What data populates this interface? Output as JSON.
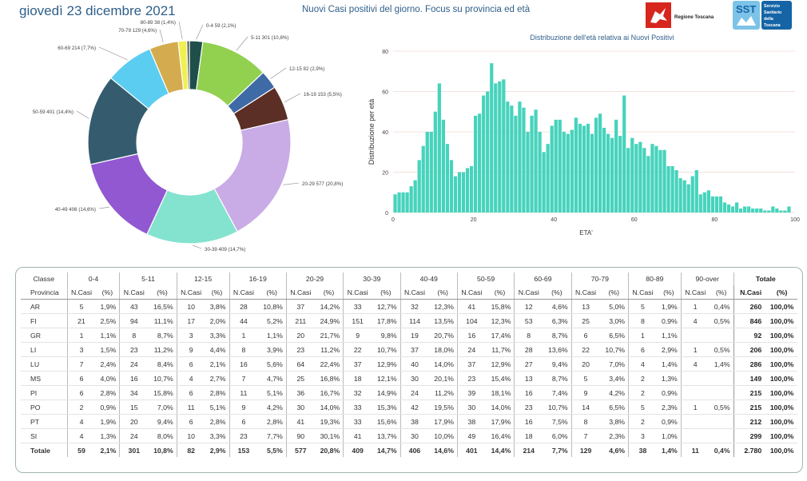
{
  "header": {
    "date": "giovedì 23 dicembre 2021",
    "title": "Nuovi Casi positivi del giorno. Focus su provincia ed età",
    "logo_regione": "Regione Toscana",
    "logo_sst": "SST",
    "logo_sst_text": [
      "Servizio",
      "Sanitario",
      "della",
      "Toscana"
    ]
  },
  "chart_data": [
    {
      "type": "pie",
      "donut": true,
      "slices": [
        {
          "label": "0-4 59 (2,1%)",
          "value": 59,
          "color": "#1f4f4a"
        },
        {
          "label": "5-11 301 (10,8%)",
          "value": 301,
          "color": "#92d050"
        },
        {
          "label": "12-15 82 (2,9%)",
          "value": 82,
          "color": "#3e6aa6"
        },
        {
          "label": "16-19 153 (5,5%)",
          "value": 153,
          "color": "#5b2e26"
        },
        {
          "label": "20-29 577 (20,8%)",
          "value": 577,
          "color": "#c9abe6"
        },
        {
          "label": "30-39 409 (14,7%)",
          "value": 409,
          "color": "#84e3cf"
        },
        {
          "label": "40-49 406 (14,6%)",
          "value": 406,
          "color": "#9158d1"
        },
        {
          "label": "50-59 401 (14,4%)",
          "value": 401,
          "color": "#355c6e"
        },
        {
          "label": "60-69 214 (7,7%)",
          "value": 214,
          "color": "#5bcdf1"
        },
        {
          "label": "70-79 129 (4,6%)",
          "value": 129,
          "color": "#d4ac4f"
        },
        {
          "label": "80-89 38 (1,4%)",
          "value": 38,
          "color": "#f0f050"
        },
        {
          "label": "",
          "value": 11,
          "color": "#4a4a4a"
        }
      ]
    },
    {
      "type": "bar",
      "title": "Distribuzione dell'età relativa ai Nuovi Positivi",
      "xlabel": "ETA'",
      "ylabel": "Distribuzione per età",
      "xlim": [
        0,
        100
      ],
      "ylim": [
        0,
        80
      ],
      "xticks": [
        0,
        20,
        40,
        60,
        80,
        100
      ],
      "yticks": [
        0,
        20,
        40,
        60,
        80
      ],
      "color": "#46d3bc",
      "x": [
        0,
        1,
        2,
        3,
        4,
        5,
        6,
        7,
        8,
        9,
        10,
        11,
        12,
        13,
        14,
        15,
        16,
        17,
        18,
        19,
        20,
        21,
        22,
        23,
        24,
        25,
        26,
        27,
        28,
        29,
        30,
        31,
        32,
        33,
        34,
        35,
        36,
        37,
        38,
        39,
        40,
        41,
        42,
        43,
        44,
        45,
        46,
        47,
        48,
        49,
        50,
        51,
        52,
        53,
        54,
        55,
        56,
        57,
        58,
        59,
        60,
        61,
        62,
        63,
        64,
        65,
        66,
        67,
        68,
        69,
        70,
        71,
        72,
        73,
        74,
        75,
        76,
        77,
        78,
        79,
        80,
        81,
        82,
        83,
        84,
        85,
        86,
        87,
        88,
        89,
        90,
        91,
        92,
        93,
        94,
        95,
        96,
        97,
        98
      ],
      "values": [
        9,
        10,
        10,
        10,
        13,
        16,
        26,
        33,
        40,
        40,
        50,
        64,
        46,
        34,
        26,
        18,
        20,
        20,
        22,
        23,
        48,
        49,
        58,
        60,
        74,
        64,
        65,
        66,
        55,
        53,
        48,
        55,
        52,
        40,
        48,
        51,
        40,
        30,
        34,
        43,
        46,
        46,
        40,
        39,
        41,
        47,
        44,
        43,
        44,
        39,
        47,
        49,
        42,
        39,
        37,
        46,
        38,
        58,
        32,
        37,
        34,
        35,
        32,
        28,
        34,
        33,
        31,
        31,
        23,
        23,
        21,
        17,
        16,
        14,
        18,
        21,
        9,
        10,
        11,
        8,
        8,
        8,
        5,
        4,
        3,
        5,
        2,
        3,
        3,
        2,
        2,
        2,
        1,
        1,
        3,
        2,
        1,
        1,
        3
      ]
    },
    {
      "type": "table",
      "age_groups": [
        "0-4",
        "5-11",
        "12-15",
        "16-19",
        "20-29",
        "30-39",
        "40-49",
        "50-59",
        "60-69",
        "70-79",
        "80-89",
        "90-over"
      ],
      "col_classe": "Classe",
      "col_provincia": "Provincia",
      "col_ncasi": "N.Casi",
      "col_pct": "(%)",
      "totale_label": "Totale",
      "rows": [
        {
          "prov": "AR",
          "cells": [
            [
              "5",
              "1,9%"
            ],
            [
              "43",
              "16,5%"
            ],
            [
              "10",
              "3,8%"
            ],
            [
              "28",
              "10,8%"
            ],
            [
              "37",
              "14,2%"
            ],
            [
              "33",
              "12,7%"
            ],
            [
              "32",
              "12,3%"
            ],
            [
              "41",
              "15,8%"
            ],
            [
              "12",
              "4,6%"
            ],
            [
              "13",
              "5,0%"
            ],
            [
              "5",
              "1,9%"
            ],
            [
              "1",
              "0,4%"
            ]
          ],
          "tot": [
            "260",
            "100,0%"
          ]
        },
        {
          "prov": "FI",
          "cells": [
            [
              "21",
              "2,5%"
            ],
            [
              "94",
              "11,1%"
            ],
            [
              "17",
              "2,0%"
            ],
            [
              "44",
              "5,2%"
            ],
            [
              "211",
              "24,9%"
            ],
            [
              "151",
              "17,8%"
            ],
            [
              "114",
              "13,5%"
            ],
            [
              "104",
              "12,3%"
            ],
            [
              "53",
              "6,3%"
            ],
            [
              "25",
              "3,0%"
            ],
            [
              "8",
              "0,9%"
            ],
            [
              "4",
              "0,5%"
            ]
          ],
          "tot": [
            "846",
            "100,0%"
          ]
        },
        {
          "prov": "GR",
          "cells": [
            [
              "1",
              "1,1%"
            ],
            [
              "8",
              "8,7%"
            ],
            [
              "3",
              "3,3%"
            ],
            [
              "1",
              "1,1%"
            ],
            [
              "20",
              "21,7%"
            ],
            [
              "9",
              "9,8%"
            ],
            [
              "19",
              "20,7%"
            ],
            [
              "16",
              "17,4%"
            ],
            [
              "8",
              "8,7%"
            ],
            [
              "6",
              "6,5%"
            ],
            [
              "1",
              "1,1%"
            ],
            [
              "",
              ""
            ]
          ],
          "tot": [
            "92",
            "100,0%"
          ]
        },
        {
          "prov": "LI",
          "cells": [
            [
              "3",
              "1,5%"
            ],
            [
              "23",
              "11,2%"
            ],
            [
              "9",
              "4,4%"
            ],
            [
              "8",
              "3,9%"
            ],
            [
              "23",
              "11,2%"
            ],
            [
              "22",
              "10,7%"
            ],
            [
              "37",
              "18,0%"
            ],
            [
              "24",
              "11,7%"
            ],
            [
              "28",
              "13,6%"
            ],
            [
              "22",
              "10,7%"
            ],
            [
              "6",
              "2,9%"
            ],
            [
              "1",
              "0,5%"
            ]
          ],
          "tot": [
            "206",
            "100,0%"
          ]
        },
        {
          "prov": "LU",
          "cells": [
            [
              "7",
              "2,4%"
            ],
            [
              "24",
              "8,4%"
            ],
            [
              "6",
              "2,1%"
            ],
            [
              "16",
              "5,6%"
            ],
            [
              "64",
              "22,4%"
            ],
            [
              "37",
              "12,9%"
            ],
            [
              "40",
              "14,0%"
            ],
            [
              "37",
              "12,9%"
            ],
            [
              "27",
              "9,4%"
            ],
            [
              "20",
              "7,0%"
            ],
            [
              "4",
              "1,4%"
            ],
            [
              "4",
              "1,4%"
            ]
          ],
          "tot": [
            "286",
            "100,0%"
          ]
        },
        {
          "prov": "MS",
          "cells": [
            [
              "6",
              "4,0%"
            ],
            [
              "16",
              "10,7%"
            ],
            [
              "4",
              "2,7%"
            ],
            [
              "7",
              "4,7%"
            ],
            [
              "25",
              "16,8%"
            ],
            [
              "18",
              "12,1%"
            ],
            [
              "30",
              "20,1%"
            ],
            [
              "23",
              "15,4%"
            ],
            [
              "13",
              "8,7%"
            ],
            [
              "5",
              "3,4%"
            ],
            [
              "2",
              "1,3%"
            ],
            [
              "",
              ""
            ]
          ],
          "tot": [
            "149",
            "100,0%"
          ]
        },
        {
          "prov": "PI",
          "cells": [
            [
              "6",
              "2,8%"
            ],
            [
              "34",
              "15,8%"
            ],
            [
              "6",
              "2,8%"
            ],
            [
              "11",
              "5,1%"
            ],
            [
              "36",
              "16,7%"
            ],
            [
              "32",
              "14,9%"
            ],
            [
              "24",
              "11,2%"
            ],
            [
              "39",
              "18,1%"
            ],
            [
              "16",
              "7,4%"
            ],
            [
              "9",
              "4,2%"
            ],
            [
              "2",
              "0,9%"
            ],
            [
              "",
              ""
            ]
          ],
          "tot": [
            "215",
            "100,0%"
          ]
        },
        {
          "prov": "PO",
          "cells": [
            [
              "2",
              "0,9%"
            ],
            [
              "15",
              "7,0%"
            ],
            [
              "11",
              "5,1%"
            ],
            [
              "9",
              "4,2%"
            ],
            [
              "30",
              "14,0%"
            ],
            [
              "33",
              "15,3%"
            ],
            [
              "42",
              "19,5%"
            ],
            [
              "30",
              "14,0%"
            ],
            [
              "23",
              "10,7%"
            ],
            [
              "14",
              "6,5%"
            ],
            [
              "5",
              "2,3%"
            ],
            [
              "1",
              "0,5%"
            ]
          ],
          "tot": [
            "215",
            "100,0%"
          ]
        },
        {
          "prov": "PT",
          "cells": [
            [
              "4",
              "1,9%"
            ],
            [
              "20",
              "9,4%"
            ],
            [
              "6",
              "2,8%"
            ],
            [
              "6",
              "2,8%"
            ],
            [
              "41",
              "19,3%"
            ],
            [
              "33",
              "15,6%"
            ],
            [
              "38",
              "17,9%"
            ],
            [
              "38",
              "17,9%"
            ],
            [
              "16",
              "7,5%"
            ],
            [
              "8",
              "3,8%"
            ],
            [
              "2",
              "0,9%"
            ],
            [
              "",
              ""
            ]
          ],
          "tot": [
            "212",
            "100,0%"
          ]
        },
        {
          "prov": "SI",
          "cells": [
            [
              "4",
              "1,3%"
            ],
            [
              "24",
              "8,0%"
            ],
            [
              "10",
              "3,3%"
            ],
            [
              "23",
              "7,7%"
            ],
            [
              "90",
              "30,1%"
            ],
            [
              "41",
              "13,7%"
            ],
            [
              "30",
              "10,0%"
            ],
            [
              "49",
              "16,4%"
            ],
            [
              "18",
              "6,0%"
            ],
            [
              "7",
              "2,3%"
            ],
            [
              "3",
              "1,0%"
            ],
            [
              "",
              ""
            ]
          ],
          "tot": [
            "299",
            "100,0%"
          ]
        }
      ],
      "totals": {
        "prov": "Totale",
        "cells": [
          [
            "59",
            "2,1%"
          ],
          [
            "301",
            "10,8%"
          ],
          [
            "82",
            "2,9%"
          ],
          [
            "153",
            "5,5%"
          ],
          [
            "577",
            "20,8%"
          ],
          [
            "409",
            "14,7%"
          ],
          [
            "406",
            "14,6%"
          ],
          [
            "401",
            "14,4%"
          ],
          [
            "214",
            "7,7%"
          ],
          [
            "129",
            "4,6%"
          ],
          [
            "38",
            "1,4%"
          ],
          [
            "11",
            "0,4%"
          ]
        ],
        "tot": [
          "2.780",
          "100,0%"
        ]
      }
    }
  ]
}
